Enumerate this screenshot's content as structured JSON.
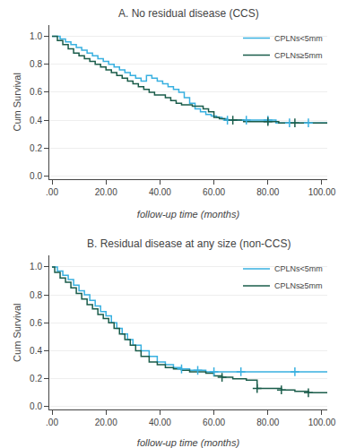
{
  "chart_data": [
    {
      "type": "step",
      "title": "A. No residual disease (CCS)",
      "x_label": "follow-up time (months)",
      "y_label": "Cum Survival",
      "xlim": [
        -1,
        102
      ],
      "ylim": [
        -0.02,
        1.08
      ],
      "xticks": [
        {
          "value": 0,
          "label": ".00"
        },
        {
          "value": 20,
          "label": "20.00"
        },
        {
          "value": 40,
          "label": "40.00"
        },
        {
          "value": 60,
          "label": "60.00"
        },
        {
          "value": 80,
          "label": "80.00"
        },
        {
          "value": 100,
          "label": "100.00"
        }
      ],
      "yticks": [
        {
          "value": 0.0,
          "label": "0.0"
        },
        0.2,
        0.4,
        0.6,
        0.8,
        {
          "value": 1.0,
          "label": "1.0"
        }
      ],
      "grid": true,
      "legend": "upper right",
      "series": [
        {
          "name": "CPLNs<5mm",
          "color": "#38B0E0",
          "marker": "plus",
          "x": [
            0,
            3,
            5,
            7,
            9,
            11,
            13,
            15,
            17,
            19,
            21,
            23,
            25,
            27,
            29,
            31,
            33,
            35,
            37,
            39,
            41,
            43,
            45,
            47,
            49,
            51,
            53,
            55,
            57,
            59,
            61,
            63,
            65,
            68,
            71,
            75,
            79,
            83,
            88,
            93,
            98,
            102
          ],
          "values": [
            1.0,
            0.98,
            0.96,
            0.94,
            0.92,
            0.9,
            0.88,
            0.86,
            0.84,
            0.82,
            0.8,
            0.78,
            0.76,
            0.74,
            0.72,
            0.7,
            0.68,
            0.72,
            0.7,
            0.68,
            0.66,
            0.64,
            0.62,
            0.6,
            0.56,
            0.52,
            0.48,
            0.46,
            0.44,
            0.43,
            0.42,
            0.41,
            0.4,
            0.4,
            0.4,
            0.4,
            0.4,
            0.38,
            0.38,
            0.38,
            0.38,
            0.38
          ],
          "censor_x": [
            65,
            72,
            80,
            88,
            95
          ],
          "censor_y": [
            0.4,
            0.4,
            0.4,
            0.38,
            0.38
          ]
        },
        {
          "name": "CPLNs≥5mm",
          "color": "#1A5C4A",
          "marker": "plus",
          "x": [
            0,
            2,
            4,
            6,
            8,
            10,
            12,
            14,
            16,
            18,
            20,
            22,
            24,
            26,
            28,
            30,
            32,
            34,
            36,
            38,
            40,
            42,
            44,
            46,
            48,
            50,
            52,
            54,
            56,
            58,
            60,
            62,
            64,
            67,
            71,
            75,
            79,
            84,
            88,
            93,
            98,
            102
          ],
          "values": [
            1.0,
            0.97,
            0.94,
            0.91,
            0.88,
            0.86,
            0.84,
            0.82,
            0.8,
            0.78,
            0.76,
            0.74,
            0.72,
            0.7,
            0.68,
            0.66,
            0.64,
            0.62,
            0.6,
            0.58,
            0.58,
            0.56,
            0.54,
            0.52,
            0.51,
            0.51,
            0.5,
            0.5,
            0.48,
            0.46,
            0.42,
            0.41,
            0.4,
            0.4,
            0.39,
            0.39,
            0.39,
            0.38,
            0.38,
            0.38,
            0.38,
            0.38
          ],
          "censor_x": [
            67,
            80,
            90
          ],
          "censor_y": [
            0.4,
            0.39,
            0.38
          ]
        }
      ]
    },
    {
      "type": "step",
      "title": "B. Residual disease at any size (non-CCS)",
      "x_label": "follow-up time (months)",
      "y_label": "Cum Survival",
      "xlim": [
        -1,
        102
      ],
      "ylim": [
        -0.02,
        1.08
      ],
      "xticks": [
        {
          "value": 0,
          "label": ".00"
        },
        {
          "value": 20,
          "label": "20.00"
        },
        {
          "value": 40,
          "label": "40.00"
        },
        {
          "value": 60,
          "label": "60.00"
        },
        {
          "value": 80,
          "label": "80.00"
        },
        {
          "value": 100,
          "label": "100.00"
        }
      ],
      "yticks": [
        {
          "value": 0.0,
          "label": "0.0"
        },
        0.2,
        0.4,
        0.6,
        0.8,
        {
          "value": 1.0,
          "label": "1.0"
        }
      ],
      "grid": true,
      "legend": "upper right",
      "series": [
        {
          "name": "CPLNs<5mm",
          "color": "#38B0E0",
          "marker": "plus",
          "x": [
            0,
            2,
            4,
            6,
            8,
            10,
            12,
            14,
            16,
            18,
            20,
            22,
            24,
            26,
            28,
            30,
            33,
            36,
            39,
            42,
            45,
            48,
            51,
            54,
            57,
            60,
            65,
            70,
            90,
            102
          ],
          "values": [
            1.0,
            0.97,
            0.94,
            0.91,
            0.87,
            0.83,
            0.8,
            0.76,
            0.72,
            0.68,
            0.65,
            0.6,
            0.56,
            0.52,
            0.48,
            0.44,
            0.4,
            0.36,
            0.32,
            0.3,
            0.28,
            0.27,
            0.26,
            0.26,
            0.25,
            0.25,
            0.25,
            0.25,
            0.25,
            0.25
          ],
          "censor_x": [
            48,
            54,
            60,
            70,
            90
          ],
          "censor_y": [
            0.27,
            0.26,
            0.25,
            0.25,
            0.25
          ]
        },
        {
          "name": "CPLNs≥5mm",
          "color": "#1A5C4A",
          "marker": "plus",
          "x": [
            0,
            1,
            3,
            5,
            7,
            9,
            11,
            13,
            15,
            17,
            19,
            21,
            23,
            25,
            27,
            29,
            31,
            33,
            36,
            39,
            42,
            45,
            48,
            51,
            54,
            57,
            60,
            63,
            67,
            72,
            76,
            80,
            85,
            90,
            95,
            100,
            102
          ],
          "values": [
            1.0,
            0.96,
            0.92,
            0.89,
            0.85,
            0.81,
            0.77,
            0.73,
            0.7,
            0.66,
            0.63,
            0.6,
            0.56,
            0.52,
            0.48,
            0.44,
            0.4,
            0.36,
            0.32,
            0.3,
            0.28,
            0.27,
            0.26,
            0.25,
            0.25,
            0.24,
            0.22,
            0.21,
            0.2,
            0.19,
            0.13,
            0.13,
            0.12,
            0.11,
            0.1,
            0.1,
            0.1
          ],
          "censor_x": [
            63,
            76,
            85,
            95
          ],
          "censor_y": [
            0.21,
            0.13,
            0.12,
            0.1
          ]
        }
      ]
    }
  ]
}
